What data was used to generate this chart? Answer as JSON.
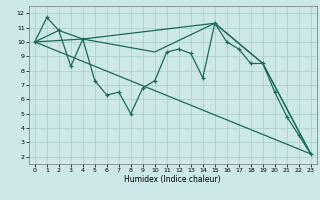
{
  "title": "",
  "xlabel": "Humidex (Indice chaleur)",
  "bg_color": "#cce8e8",
  "grid_color": "#aacccc",
  "line_color": "#1a6b5a",
  "xlim": [
    -0.5,
    23.5
  ],
  "ylim": [
    1.5,
    12.5
  ],
  "xticks": [
    0,
    1,
    2,
    3,
    4,
    5,
    6,
    7,
    8,
    9,
    10,
    11,
    12,
    13,
    14,
    15,
    16,
    17,
    18,
    19,
    20,
    21,
    22,
    23
  ],
  "yticks": [
    2,
    3,
    4,
    5,
    6,
    7,
    8,
    9,
    10,
    11,
    12
  ],
  "line_jagged": {
    "x": [
      0,
      1,
      2,
      3,
      4,
      5,
      6,
      7,
      8,
      9,
      10,
      11,
      12,
      13,
      14,
      15,
      16,
      17,
      18,
      19,
      20,
      21,
      22,
      23
    ],
    "y": [
      10,
      11.7,
      10.8,
      8.3,
      10.2,
      7.3,
      6.3,
      6.5,
      5.0,
      6.8,
      7.3,
      9.3,
      9.5,
      9.2,
      7.5,
      11.3,
      10.0,
      9.5,
      8.5,
      8.5,
      6.5,
      4.8,
      3.5,
      2.2
    ]
  },
  "line_smooth1": {
    "x": [
      0,
      2,
      4,
      10,
      15,
      19,
      23
    ],
    "y": [
      10,
      10.8,
      10.2,
      9.3,
      11.3,
      8.5,
      2.2
    ]
  },
  "line_smooth2": {
    "x": [
      0,
      2,
      4,
      10,
      15,
      19,
      23
    ],
    "y": [
      10,
      10.8,
      10.2,
      9.3,
      11.3,
      8.5,
      2.2
    ]
  },
  "line_diagonal1": {
    "x": [
      0,
      23
    ],
    "y": [
      10,
      2.2
    ]
  },
  "line_diagonal2": {
    "x": [
      0,
      4,
      15,
      19,
      23
    ],
    "y": [
      10,
      10.2,
      11.3,
      8.5,
      2.2
    ]
  }
}
